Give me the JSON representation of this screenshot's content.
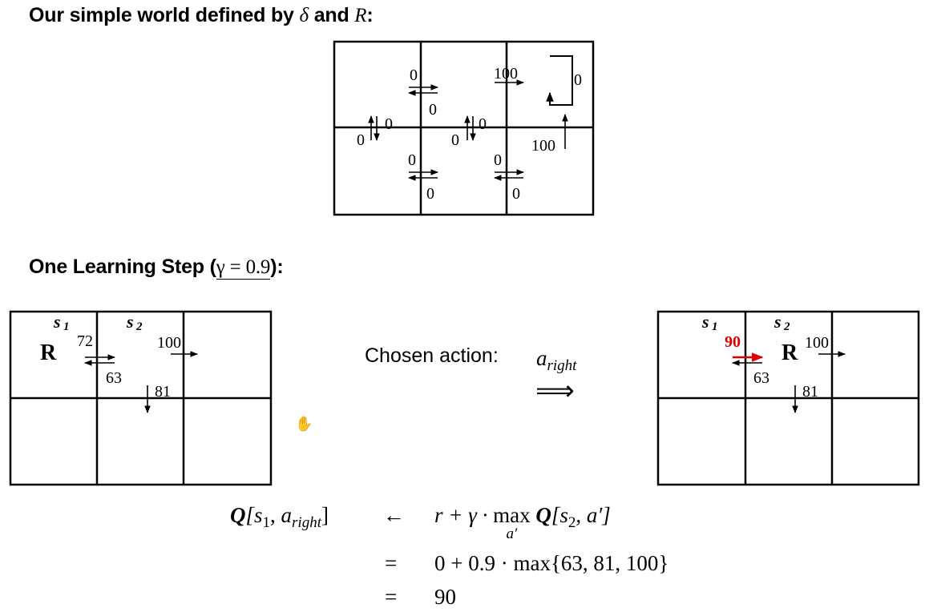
{
  "heading1": {
    "prefix": "Our simple world defined by",
    "delta": "δ",
    "and": "and",
    "R": "R",
    "colon": ":"
  },
  "heading2": {
    "prefix": "One Learning Step (",
    "gamma_expr": "γ = 0.9",
    "suffix": "):"
  },
  "world_grid": {
    "rewards": {
      "top_lr_right": "0",
      "top_lr_left": "0",
      "top_mr_right": "100",
      "selfloop": "0",
      "left_vert_up": "0",
      "left_vert_down": "0",
      "mid_vert_up": "0",
      "mid_vert_down": "0",
      "right_up": "100",
      "bot_lr_right": "0",
      "bot_lr_left": "0",
      "bot_mr_right": "0",
      "bot_mr_left": "0"
    }
  },
  "before_grid": {
    "s1": "s",
    "s1_sub": "1",
    "s2": "s",
    "s2_sub": "2",
    "agent": "R",
    "q_right": "72",
    "q_left": "63",
    "q_goal": "100",
    "q_down": "81"
  },
  "after_grid": {
    "s1": "s",
    "s1_sub": "1",
    "s2": "s",
    "s2_sub": "2",
    "agent": "R",
    "q_right": "90",
    "q_left": "63",
    "q_goal": "100",
    "q_down": "81"
  },
  "colors": {
    "updated": "#e00000",
    "line": "#000000"
  },
  "action": {
    "label": "Chosen action:",
    "a": "a",
    "a_sub": "right",
    "arrow": "⟹"
  },
  "equation": {
    "row1_lhs_Q": "Q",
    "row1_lhs_open": "[s",
    "row1_lhs_sub1": "1",
    "row1_lhs_mid": ", a",
    "row1_lhs_sub2": "right",
    "row1_lhs_close": "]",
    "row1_op": "←",
    "row1_rhs_a": "r + γ · ",
    "row1_rhs_max": "max",
    "row1_rhs_max_sub": "a′",
    "row1_rhs_Q": "Q",
    "row1_rhs_b": "[s",
    "row1_rhs_sub": "2",
    "row1_rhs_c": ", a′]",
    "row2_op": "=",
    "row2_rhs": "0 + 0.9 · max{63, 81, 100}",
    "row3_op": "=",
    "row3_rhs": "90"
  },
  "cursor_icon": "✋"
}
